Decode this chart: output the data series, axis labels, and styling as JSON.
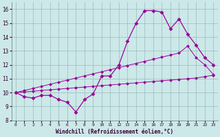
{
  "x": [
    0,
    1,
    2,
    3,
    4,
    5,
    6,
    7,
    8,
    9,
    10,
    11,
    12,
    13,
    14,
    15,
    16,
    17,
    18,
    19,
    20,
    21,
    22,
    23
  ],
  "line1": [
    10.0,
    9.7,
    9.6,
    9.8,
    9.8,
    9.5,
    9.3,
    8.6,
    9.5,
    9.9,
    11.2,
    11.2,
    12.0,
    13.7,
    15.0,
    15.9,
    15.9,
    15.8,
    14.6,
    15.3,
    14.2,
    13.4,
    12.5,
    12.0
  ],
  "line2": [
    10.0,
    10.15,
    10.3,
    10.45,
    10.6,
    10.75,
    10.9,
    11.05,
    11.2,
    11.35,
    11.5,
    11.65,
    11.8,
    11.95,
    12.1,
    12.25,
    12.4,
    12.55,
    12.7,
    12.85,
    13.35,
    12.5,
    12.0,
    11.3
  ],
  "line3": [
    10.0,
    10.05,
    10.1,
    10.15,
    10.2,
    10.25,
    10.3,
    10.35,
    10.4,
    10.45,
    10.5,
    10.55,
    10.6,
    10.65,
    10.7,
    10.75,
    10.8,
    10.85,
    10.9,
    10.95,
    11.0,
    11.05,
    11.15,
    11.25
  ],
  "line_color": "#990099",
  "bg_color": "#cce8e8",
  "grid_color": "#99bbbb",
  "xlabel": "Windchill (Refroidissement éolien,°C)",
  "xlim": [
    -0.5,
    23.5
  ],
  "ylim": [
    8.0,
    16.5
  ],
  "yticks": [
    8,
    9,
    10,
    11,
    12,
    13,
    14,
    15,
    16
  ],
  "xticks": [
    0,
    1,
    2,
    3,
    4,
    5,
    6,
    7,
    8,
    9,
    10,
    11,
    12,
    13,
    14,
    15,
    16,
    17,
    18,
    19,
    20,
    21,
    22,
    23
  ]
}
